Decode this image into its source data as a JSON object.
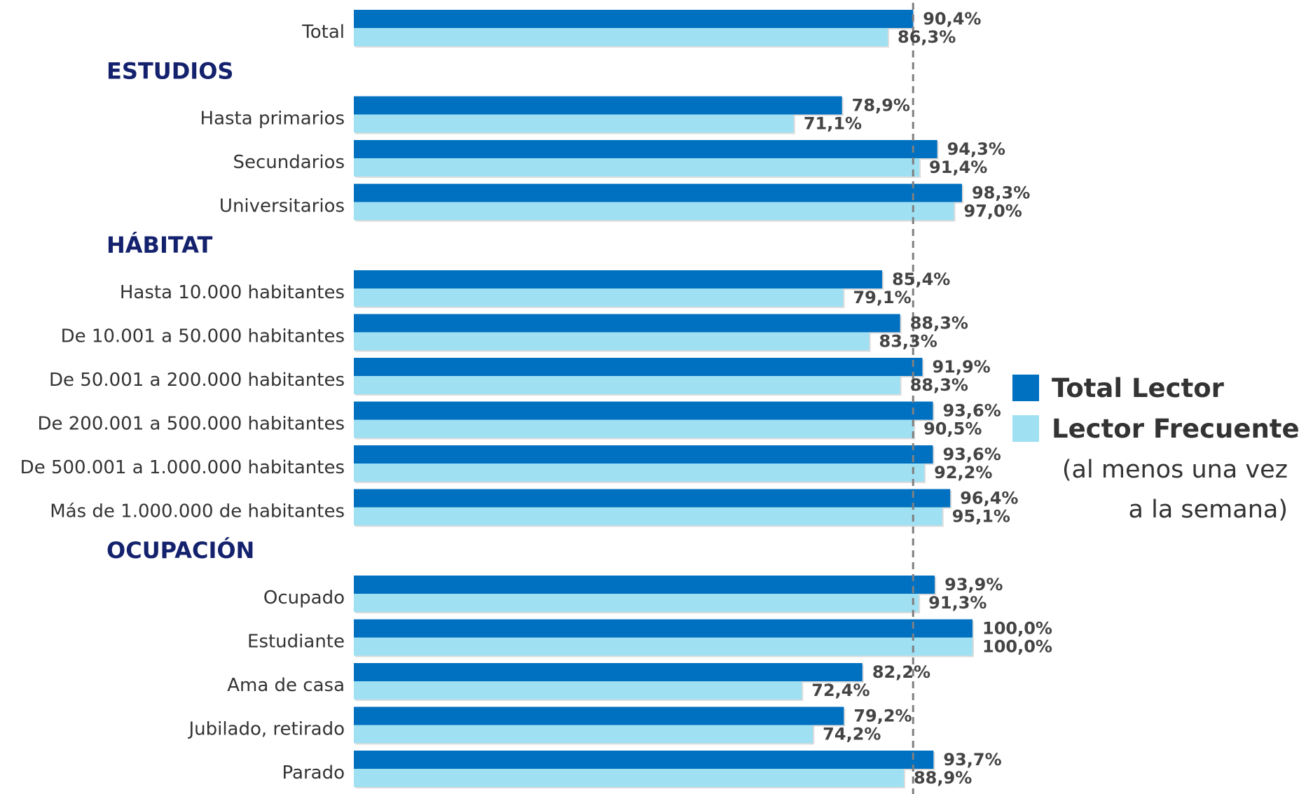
{
  "colors": {
    "total_lector": "#0070c0",
    "lector_frecuente": "#9fe0f2",
    "section": "#14226e",
    "reference_line": "#808080"
  },
  "legend": {
    "total_lector": "Total Lector",
    "lector_frecuente": "Lector Frecuente",
    "note_line1": "(al menos una vez",
    "note_line2": "a la semana)"
  },
  "chart_data": {
    "type": "bar",
    "orientation": "horizontal",
    "xlim": [
      0,
      100
    ],
    "reference_value": 90.4,
    "legend_position": "right",
    "series_names": [
      "Total Lector",
      "Lector Frecuente"
    ],
    "sections": [
      {
        "title": "",
        "categories": [
          {
            "label": "Total",
            "values": [
              90.4,
              86.3
            ],
            "labels": [
              "90,4%",
              "86,3%"
            ]
          }
        ]
      },
      {
        "title": "ESTUDIOS",
        "categories": [
          {
            "label": "Hasta primarios",
            "values": [
              78.9,
              71.1
            ],
            "labels": [
              "78,9%",
              "71,1%"
            ]
          },
          {
            "label": "Secundarios",
            "values": [
              94.3,
              91.4
            ],
            "labels": [
              "94,3%",
              "91,4%"
            ]
          },
          {
            "label": "Universitarios",
            "values": [
              98.3,
              97.0
            ],
            "labels": [
              "98,3%",
              "97,0%"
            ]
          }
        ]
      },
      {
        "title": "HÁBITAT",
        "categories": [
          {
            "label": "Hasta 10.000 habitantes",
            "values": [
              85.4,
              79.1
            ],
            "labels": [
              "85,4%",
              "79,1%"
            ]
          },
          {
            "label": "De 10.001 a 50.000 habitantes",
            "values": [
              88.3,
              83.3
            ],
            "labels": [
              "88,3%",
              "83,3%"
            ]
          },
          {
            "label": "De 50.001 a 200.000 habitantes",
            "values": [
              91.9,
              88.3
            ],
            "labels": [
              "91,9%",
              "88,3%"
            ]
          },
          {
            "label": "De 200.001 a 500.000 habitantes",
            "values": [
              93.6,
              90.5
            ],
            "labels": [
              "93,6%",
              "90,5%"
            ]
          },
          {
            "label": "De 500.001 a 1.000.000 habitantes",
            "values": [
              93.6,
              92.2
            ],
            "labels": [
              "93,6%",
              "92,2%"
            ]
          },
          {
            "label": "Más de 1.000.000 de habitantes",
            "values": [
              96.4,
              95.1
            ],
            "labels": [
              "96,4%",
              "95,1%"
            ]
          }
        ]
      },
      {
        "title": "OCUPACIÓN",
        "categories": [
          {
            "label": "Ocupado",
            "values": [
              93.9,
              91.3
            ],
            "labels": [
              "93,9%",
              "91,3%"
            ]
          },
          {
            "label": "Estudiante",
            "values": [
              100.0,
              100.0
            ],
            "labels": [
              "100,0%",
              "100,0%"
            ]
          },
          {
            "label": "Ama de casa",
            "values": [
              82.2,
              72.4
            ],
            "labels": [
              "82,2%",
              "72,4%"
            ]
          },
          {
            "label": "Jubilado, retirado",
            "values": [
              79.2,
              74.2
            ],
            "labels": [
              "79,2%",
              "74,2%"
            ]
          },
          {
            "label": "Parado",
            "values": [
              93.7,
              88.9
            ],
            "labels": [
              "93,7%",
              "88,9%"
            ]
          }
        ]
      }
    ]
  }
}
